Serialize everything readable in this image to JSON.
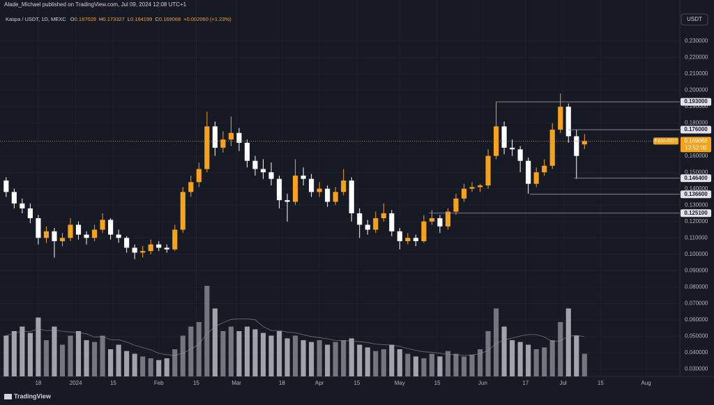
{
  "header": {
    "title": "Alade_Michael published on TradingView.com, Jul 09, 2024 12:08 UTC+1"
  },
  "chart_data": {
    "type": "candlestick",
    "symbol": "Kaspa / USDT, 1D, MEXC",
    "ohlc_labels": [
      "O",
      "H",
      "L",
      "C"
    ],
    "change": "+0.002060",
    "change_pct": "(+1.23%)",
    "currency": "USDT",
    "up_color": "#f7a21b",
    "down_color": "#ffffff",
    "volume_up_color": "#8a8d96",
    "volume_down_color": "#c3c6ce",
    "xlim": [
      -1.3,
      252.6
    ],
    "ylim": [
      0.0255,
      0.2432
    ],
    "volume_lim": [
      0,
      100
    ],
    "grid": true,
    "xticks": [
      {
        "value": 13,
        "label": "18"
      },
      {
        "value": 27,
        "label": "2024"
      },
      {
        "value": 41,
        "label": "15"
      },
      {
        "value": 58,
        "label": "Feb"
      },
      {
        "value": 72,
        "label": "15"
      },
      {
        "value": 87,
        "label": "Mar"
      },
      {
        "value": 104,
        "label": "18"
      },
      {
        "value": 118,
        "label": "Apr"
      },
      {
        "value": 132,
        "label": "15"
      },
      {
        "value": 148,
        "label": "May"
      },
      {
        "value": 162,
        "label": "15"
      },
      {
        "value": 179,
        "label": "Jun"
      },
      {
        "value": 195,
        "label": "17"
      },
      {
        "value": 209,
        "label": "Jul"
      },
      {
        "value": 223,
        "label": "15"
      },
      {
        "value": 240,
        "label": "Aug"
      }
    ],
    "yticks": [
      {
        "value": 0.23,
        "label": "0.230000"
      },
      {
        "value": 0.22,
        "label": "0.220000"
      },
      {
        "value": 0.21,
        "label": "0.210000"
      },
      {
        "value": 0.2,
        "label": "0.200000"
      },
      {
        "value": 0.19,
        "label": "0.190000"
      },
      {
        "value": 0.18,
        "label": "0.180000"
      },
      {
        "value": 0.16,
        "label": "0.160000"
      },
      {
        "value": 0.15,
        "label": "0.150000"
      },
      {
        "value": 0.14,
        "label": "0.140000"
      },
      {
        "value": 0.13,
        "label": "0.130000"
      },
      {
        "value": 0.12,
        "label": "0.120000"
      },
      {
        "value": 0.11,
        "label": "0.110000"
      },
      {
        "value": 0.1,
        "label": "0.100000"
      },
      {
        "value": 0.09,
        "label": "0.090000"
      },
      {
        "value": 0.08,
        "label": "0.080000"
      },
      {
        "value": 0.07,
        "label": "0.070000"
      },
      {
        "value": 0.06,
        "label": "0.060000"
      },
      {
        "value": 0.05,
        "label": "0.050000"
      },
      {
        "value": 0.04,
        "label": "0.040000"
      },
      {
        "value": 0.03,
        "label": "0.030000"
      }
    ],
    "levels": [
      {
        "price": 0.193,
        "label": "0.193000",
        "start": 184
      },
      {
        "price": 0.176,
        "label": "0.176000",
        "start": 211
      },
      {
        "price": 0.1464,
        "label": "0.146400",
        "start": 213
      },
      {
        "price": 0.1366,
        "label": "0.136600",
        "start": 196.6
      },
      {
        "price": 0.1251,
        "label": "0.125100",
        "start": 158.9
      }
    ],
    "last_price": {
      "ticker": "KASUSDT",
      "countdown": "12:52:00"
    },
    "x": [
      1,
      4,
      7,
      10,
      13,
      16,
      19,
      22,
      25,
      28,
      31,
      34,
      37,
      40,
      43,
      46,
      49,
      52,
      55,
      58,
      61,
      64,
      67,
      70,
      73,
      76,
      79,
      82,
      85,
      88,
      91,
      94,
      97,
      100,
      103,
      106,
      109,
      112,
      115,
      118,
      121,
      124,
      127,
      130,
      133,
      136,
      139,
      142,
      145,
      148,
      151,
      154,
      157,
      160,
      163,
      166,
      169,
      172,
      175,
      178,
      181,
      184,
      187,
      190,
      193,
      196,
      199,
      202,
      205,
      208,
      211,
      214,
      217
    ],
    "candles": [
      [
        0.145,
        0.147,
        0.135,
        0.138
      ],
      [
        0.138,
        0.14,
        0.128,
        0.131
      ],
      [
        0.131,
        0.134,
        0.125,
        0.128
      ],
      [
        0.128,
        0.131,
        0.119,
        0.122
      ],
      [
        0.122,
        0.124,
        0.106,
        0.11
      ],
      [
        0.11,
        0.117,
        0.107,
        0.114
      ],
      [
        0.114,
        0.116,
        0.098,
        0.108
      ],
      [
        0.108,
        0.113,
        0.105,
        0.11
      ],
      [
        0.11,
        0.122,
        0.108,
        0.118
      ],
      [
        0.118,
        0.12,
        0.109,
        0.112
      ],
      [
        0.112,
        0.114,
        0.106,
        0.11
      ],
      [
        0.11,
        0.118,
        0.108,
        0.115
      ],
      [
        0.115,
        0.125,
        0.113,
        0.121
      ],
      [
        0.121,
        0.122,
        0.109,
        0.112
      ],
      [
        0.112,
        0.115,
        0.107,
        0.11
      ],
      [
        0.11,
        0.111,
        0.101,
        0.104
      ],
      [
        0.104,
        0.106,
        0.097,
        0.101
      ],
      [
        0.101,
        0.105,
        0.098,
        0.102
      ],
      [
        0.102,
        0.109,
        0.1,
        0.106
      ],
      [
        0.106,
        0.108,
        0.102,
        0.104
      ],
      [
        0.104,
        0.106,
        0.101,
        0.103
      ],
      [
        0.103,
        0.118,
        0.102,
        0.115
      ],
      [
        0.115,
        0.141,
        0.113,
        0.138
      ],
      [
        0.138,
        0.148,
        0.135,
        0.144
      ],
      [
        0.144,
        0.156,
        0.141,
        0.152
      ],
      [
        0.152,
        0.187,
        0.15,
        0.178
      ],
      [
        0.178,
        0.181,
        0.16,
        0.165
      ],
      [
        0.165,
        0.175,
        0.162,
        0.17
      ],
      [
        0.17,
        0.184,
        0.166,
        0.174
      ],
      [
        0.174,
        0.177,
        0.163,
        0.168
      ],
      [
        0.168,
        0.17,
        0.153,
        0.157
      ],
      [
        0.157,
        0.16,
        0.148,
        0.152
      ],
      [
        0.152,
        0.158,
        0.146,
        0.15
      ],
      [
        0.15,
        0.156,
        0.142,
        0.146
      ],
      [
        0.146,
        0.148,
        0.128,
        0.133
      ],
      [
        0.133,
        0.137,
        0.12,
        0.132
      ],
      [
        0.132,
        0.158,
        0.13,
        0.148
      ],
      [
        0.148,
        0.153,
        0.142,
        0.146
      ],
      [
        0.146,
        0.149,
        0.135,
        0.138
      ],
      [
        0.138,
        0.144,
        0.135,
        0.14
      ],
      [
        0.14,
        0.142,
        0.129,
        0.132
      ],
      [
        0.132,
        0.141,
        0.13,
        0.138
      ],
      [
        0.138,
        0.152,
        0.136,
        0.145
      ],
      [
        0.145,
        0.147,
        0.12,
        0.125
      ],
      [
        0.125,
        0.128,
        0.11,
        0.118
      ],
      [
        0.118,
        0.121,
        0.112,
        0.115
      ],
      [
        0.115,
        0.126,
        0.113,
        0.122
      ],
      [
        0.122,
        0.131,
        0.12,
        0.125
      ],
      [
        0.125,
        0.127,
        0.111,
        0.114
      ],
      [
        0.114,
        0.116,
        0.103,
        0.108
      ],
      [
        0.108,
        0.113,
        0.106,
        0.11
      ],
      [
        0.11,
        0.112,
        0.105,
        0.108
      ],
      [
        0.108,
        0.124,
        0.107,
        0.12
      ],
      [
        0.12,
        0.127,
        0.118,
        0.122
      ],
      [
        0.122,
        0.124,
        0.113,
        0.117
      ],
      [
        0.117,
        0.128,
        0.115,
        0.126
      ],
      [
        0.126,
        0.137,
        0.124,
        0.134
      ],
      [
        0.134,
        0.143,
        0.132,
        0.14
      ],
      [
        0.14,
        0.144,
        0.138,
        0.141
      ],
      [
        0.141,
        0.143,
        0.138,
        0.142
      ],
      [
        0.142,
        0.164,
        0.14,
        0.16
      ],
      [
        0.16,
        0.193,
        0.158,
        0.178
      ],
      [
        0.178,
        0.181,
        0.161,
        0.165
      ],
      [
        0.165,
        0.17,
        0.16,
        0.164
      ],
      [
        0.164,
        0.166,
        0.15,
        0.157
      ],
      [
        0.157,
        0.159,
        0.137,
        0.143
      ],
      [
        0.143,
        0.153,
        0.141,
        0.15
      ],
      [
        0.15,
        0.158,
        0.148,
        0.154
      ],
      [
        0.154,
        0.18,
        0.152,
        0.176
      ],
      [
        0.176,
        0.198,
        0.174,
        0.19
      ],
      [
        0.19,
        0.192,
        0.168,
        0.172
      ],
      [
        0.172,
        0.176,
        0.146,
        0.16
      ],
      [
        0.167029,
        0.173327,
        0.164199,
        0.169068
      ]
    ],
    "volume": [
      45,
      50,
      55,
      48,
      65,
      40,
      55,
      35,
      45,
      50,
      40,
      38,
      45,
      30,
      35,
      28,
      25,
      22,
      20,
      18,
      20,
      30,
      45,
      55,
      60,
      100,
      75,
      50,
      55,
      50,
      55,
      52,
      48,
      45,
      50,
      42,
      45,
      40,
      38,
      40,
      35,
      38,
      40,
      42,
      35,
      32,
      28,
      30,
      35,
      30,
      25,
      22,
      20,
      25,
      22,
      28,
      25,
      22,
      24,
      30,
      50,
      75,
      55,
      40,
      38,
      35,
      30,
      32,
      40,
      60,
      75,
      45,
      25
    ]
  },
  "footer": {
    "brand": "TradingView"
  }
}
